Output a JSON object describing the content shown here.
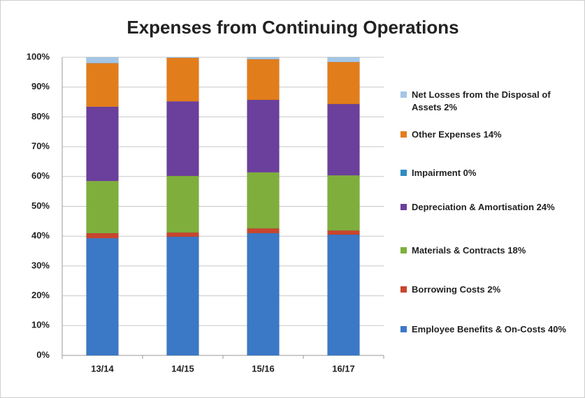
{
  "chart_data": {
    "type": "stacked_bar",
    "title": "Expenses from Continuing Operations",
    "categories": [
      "13/14",
      "14/15",
      "15/16",
      "16/17"
    ],
    "series": [
      {
        "name": "Employee Benefits & On-Costs 40%",
        "color": "#3b78c6",
        "values": [
          39.3,
          39.8,
          41.0,
          40.5
        ]
      },
      {
        "name": "Borrowing Costs 2%",
        "color": "#c8452e",
        "values": [
          1.7,
          1.4,
          1.6,
          1.4
        ]
      },
      {
        "name": "Materials & Contracts 18%",
        "color": "#7fae3c",
        "values": [
          17.5,
          19.0,
          18.8,
          18.5
        ]
      },
      {
        "name": "Depreciation & Amortisation 24%",
        "color": "#6b3f9c",
        "values": [
          24.9,
          25.0,
          24.3,
          23.9
        ]
      },
      {
        "name": "Impairment 0%",
        "color": "#2f8cc2",
        "values": [
          0,
          0,
          0,
          0
        ]
      },
      {
        "name": "Other Expenses 14%",
        "color": "#e27d1c",
        "values": [
          14.6,
          14.6,
          13.6,
          14.1
        ]
      },
      {
        "name": "Net Losses from the Disposal of Assets 2%",
        "color": "#a3c6e6",
        "values": [
          2.0,
          0.2,
          0.7,
          1.6
        ]
      }
    ],
    "ylim": [
      0,
      100
    ],
    "yticks": [
      {
        "value": 0,
        "label": "0%"
      },
      {
        "value": 10,
        "label": "10%"
      },
      {
        "value": 20,
        "label": "20%"
      },
      {
        "value": 30,
        "label": "30%"
      },
      {
        "value": 40,
        "label": "40%"
      },
      {
        "value": 50,
        "label": "50%"
      },
      {
        "value": 60,
        "label": "60%"
      },
      {
        "value": 70,
        "label": "70%"
      },
      {
        "value": 80,
        "label": "80%"
      },
      {
        "value": 90,
        "label": "90%"
      },
      {
        "value": 100,
        "label": "100%"
      }
    ],
    "grid": true
  }
}
